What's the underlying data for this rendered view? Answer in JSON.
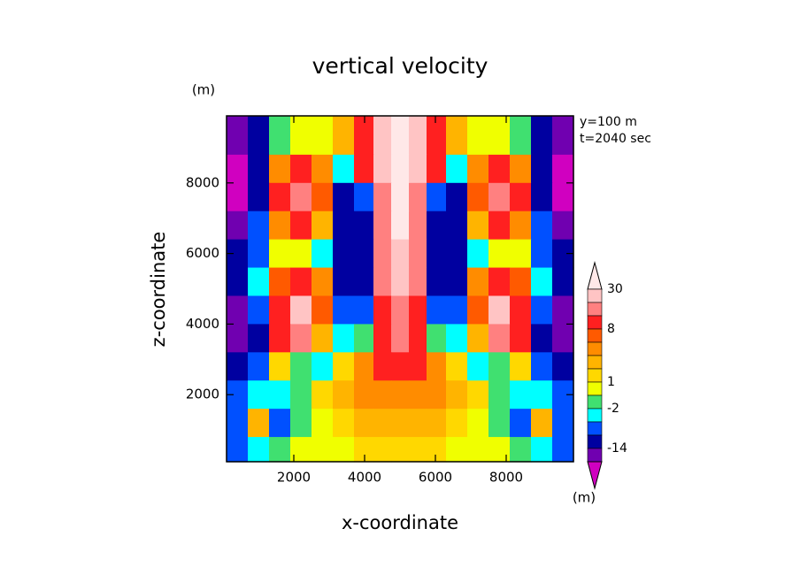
{
  "chart_data": {
    "type": "contour",
    "title": "vertical velocity",
    "x_label": "x-coordinate",
    "y_label": "z-coordinate",
    "y_units": "(m)",
    "annotations": [
      "y=100 m",
      "t=2040 sec"
    ],
    "xlim": [
      100,
      9900
    ],
    "ylim": [
      100,
      9900
    ],
    "xticks": [
      2000,
      4000,
      6000,
      8000
    ],
    "yticks": [
      2000,
      4000,
      6000,
      8000
    ],
    "x": [
      400,
      1000,
      1600,
      2200,
      2800,
      3400,
      4000,
      4500,
      5000,
      5500,
      6000,
      6600,
      7200,
      7800,
      8400,
      9000,
      9600
    ],
    "y": [
      9200,
      8400,
      7600,
      6800,
      6000,
      5200,
      4400,
      3600,
      2800,
      2000,
      1200,
      400
    ],
    "z": [
      [
        -16,
        -10,
        -1,
        0.5,
        0.5,
        3,
        10,
        22,
        32,
        22,
        10,
        3,
        0.5,
        0.5,
        -1,
        -10,
        -16
      ],
      [
        -22,
        -10,
        5,
        10,
        5,
        -3,
        9,
        20,
        32,
        20,
        9,
        -3,
        5,
        10,
        5,
        -10,
        -22
      ],
      [
        -22,
        -12,
        8,
        16,
        6,
        -10,
        -6,
        16,
        31,
        16,
        -6,
        -10,
        6,
        16,
        8,
        -12,
        -22
      ],
      [
        -20,
        -8,
        5,
        10,
        2,
        -12,
        -10,
        16,
        30,
        16,
        -10,
        -12,
        2,
        10,
        5,
        -8,
        -20
      ],
      [
        -10,
        -5,
        0.5,
        0.5,
        -3,
        -12,
        -10,
        15,
        26,
        15,
        -10,
        -12,
        -3,
        0.5,
        0.5,
        -5,
        -10
      ],
      [
        -14,
        -3,
        6,
        12,
        4,
        -10,
        -9,
        14,
        22,
        14,
        -9,
        -10,
        4,
        12,
        6,
        -3,
        -14
      ],
      [
        -18,
        -8,
        10,
        20,
        6,
        -6,
        -5,
        12,
        18,
        12,
        -5,
        -6,
        6,
        20,
        10,
        -8,
        -18
      ],
      [
        -20,
        -9,
        8,
        15,
        3,
        -4,
        -1,
        10,
        14,
        10,
        -1,
        -4,
        3,
        15,
        8,
        -9,
        -20
      ],
      [
        -12,
        -6,
        1,
        -1,
        -3,
        1,
        4,
        8,
        9,
        8,
        4,
        1,
        -3,
        -1,
        1,
        -6,
        -12
      ],
      [
        -6,
        -3,
        -4,
        -2,
        1.5,
        3,
        5,
        5,
        5,
        5,
        5,
        3,
        1.5,
        -2,
        -4,
        -3,
        -6
      ],
      [
        -8,
        3,
        -6,
        -1,
        0.5,
        1.5,
        3,
        3,
        3,
        3,
        3,
        1.5,
        0.5,
        -1,
        -6,
        3,
        -8
      ],
      [
        -8,
        -4,
        -2,
        0.5,
        0.5,
        0.5,
        1.5,
        1.5,
        1.5,
        1.5,
        1.5,
        0.5,
        0.5,
        0.5,
        -2,
        -4,
        -8
      ]
    ],
    "colorbar": {
      "levels": [
        30,
        20,
        14,
        8,
        6,
        4,
        2,
        1,
        0,
        -2,
        -4,
        -8,
        -14,
        -20
      ],
      "colors": [
        "#ffe8e8",
        "#ffc4c4",
        "#ff8080",
        "#ff2020",
        "#ff5a00",
        "#ff8c00",
        "#ffb400",
        "#ffd800",
        "#f0ff00",
        "#40e070",
        "#00ffff",
        "#0050ff",
        "#0000a0",
        "#7000b0",
        "#d000c0"
      ],
      "ticks": [
        30,
        8,
        1,
        -2,
        -14
      ],
      "units": "(m)"
    }
  }
}
